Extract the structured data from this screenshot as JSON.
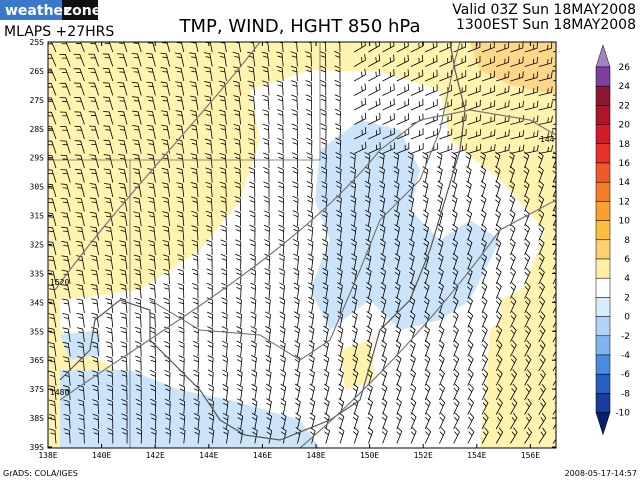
{
  "header": {
    "logo_weather": "weather",
    "logo_zone": "zone",
    "model": "MLAPS +27HRS",
    "title": "TMP, WIND, HGHT 850 hPa",
    "valid_line1": "Valid 03Z Sun 18MAY2008",
    "valid_line2": "1300EST Sun 18MAY2008"
  },
  "map": {
    "lat_labels": [
      "25S",
      "26S",
      "27S",
      "28S",
      "29S",
      "30S",
      "31S",
      "32S",
      "33S",
      "34S",
      "35S",
      "36S",
      "37S",
      "38S",
      "39S"
    ],
    "lon_labels": [
      "138E",
      "140E",
      "142E",
      "144E",
      "146E",
      "148E",
      "150E",
      "152E",
      "154E",
      "156E"
    ],
    "contour_labels": [
      "144",
      "1520",
      "1480"
    ]
  },
  "colorbar": {
    "levels": [
      26,
      24,
      22,
      20,
      18,
      16,
      14,
      12,
      10,
      8,
      6,
      4,
      2,
      0,
      -2,
      -4,
      -6,
      -8,
      -10
    ],
    "colors": [
      "#a482c8",
      "#7e3fa0",
      "#8c1830",
      "#b0142a",
      "#d01e28",
      "#e83228",
      "#f05a28",
      "#f57c28",
      "#f8a030",
      "#fbbf40",
      "#fbd070",
      "#fff0a8",
      "#ffffff",
      "#d8ecfc",
      "#b0d4f8",
      "#80b4f0",
      "#4a8ce0",
      "#2860c0",
      "#183c9c",
      "#0a1e6e"
    ]
  },
  "footer": {
    "credit": "GrADS: COLA/IGES",
    "timestamp": "2008-05-17-14:57"
  }
}
